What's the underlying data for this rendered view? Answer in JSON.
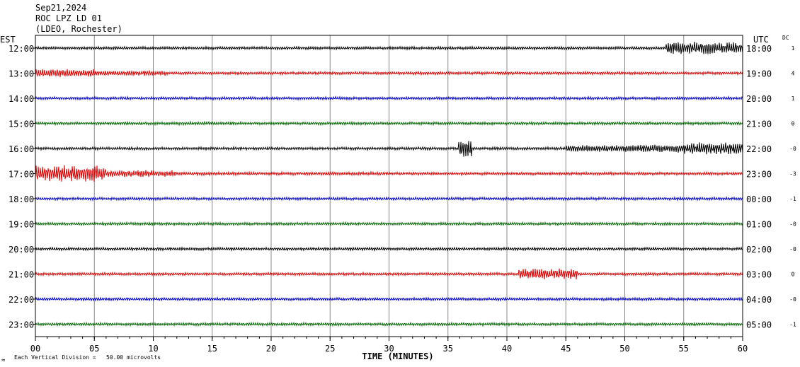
{
  "header": {
    "date": "Sep21,2024",
    "station": "ROC LPZ LD 01",
    "network": "(LDEO, Rochester)"
  },
  "left_axis_label": "EST",
  "right_axis_label": "UTC",
  "dc_label": "DC",
  "footer": {
    "scale_icon": "≈",
    "scale_note": "Each Vertical Division =   50.00 microvolts"
  },
  "chart_data": {
    "type": "line",
    "xlabel": "TIME (MINUTES)",
    "xlim": [
      0,
      60
    ],
    "x_ticks": [
      "00",
      "05",
      "10",
      "15",
      "20",
      "25",
      "30",
      "35",
      "40",
      "45",
      "50",
      "55",
      "60"
    ],
    "grid": true,
    "trace_colors": [
      "#000000",
      "#dd0000",
      "#0000cc",
      "#006600"
    ],
    "rows": [
      {
        "est": "12:00",
        "utc": "18:00",
        "dc": "1"
      },
      {
        "est": "13:00",
        "utc": "19:00",
        "dc": "4"
      },
      {
        "est": "14:00",
        "utc": "20:00",
        "dc": "1"
      },
      {
        "est": "15:00",
        "utc": "21:00",
        "dc": "0"
      },
      {
        "est": "16:00",
        "utc": "22:00",
        "dc": "-0"
      },
      {
        "est": "17:00",
        "utc": "23:00",
        "dc": "-3"
      },
      {
        "est": "18:00",
        "utc": "00:00",
        "dc": "-1"
      },
      {
        "est": "19:00",
        "utc": "01:00",
        "dc": "-0"
      },
      {
        "est": "20:00",
        "utc": "02:00",
        "dc": "-0"
      },
      {
        "est": "21:00",
        "utc": "03:00",
        "dc": "0"
      },
      {
        "est": "22:00",
        "utc": "04:00",
        "dc": "-0"
      },
      {
        "est": "23:00",
        "utc": "05:00",
        "dc": "-1"
      }
    ]
  }
}
